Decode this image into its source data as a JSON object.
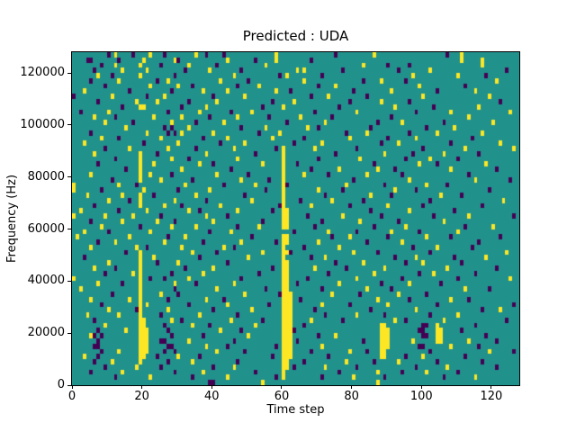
{
  "chart_data": {
    "type": "heatmap",
    "title": "Predicted : UDA",
    "xlabel": "Time step",
    "ylabel": "Frequency (Hz)",
    "x_range": [
      0,
      128
    ],
    "y_range": [
      0,
      128000
    ],
    "x_ticks": [
      0,
      20,
      40,
      60,
      80,
      100,
      120
    ],
    "y_ticks": [
      0,
      20000,
      40000,
      60000,
      80000,
      100000,
      120000
    ],
    "grid_cols": 128,
    "grid_rows": 64,
    "grid_on": false,
    "legend": "none",
    "colors": {
      "figure_bg": "#ffffff",
      "mid_teal": "#21918c",
      "low_purple": "#440154",
      "high_yellow": "#fde725",
      "text": "#000000"
    },
    "value_encoding": {
      "default_cell": "mid_teal",
      "p": "low_purple",
      "y": "high_yellow"
    },
    "rows_order": "top_to_bottom_row0_is_128000Hz",
    "rows": [
      {
        "p": [
          10,
          17,
          26,
          38,
          43,
          75,
          107
        ],
        "y": [
          12,
          22,
          35,
          58,
          86,
          111
        ]
      },
      {
        "p": [
          4,
          5,
          13,
          30,
          52,
          68
        ],
        "y": [
          20,
          29,
          44,
          58,
          111,
          117
        ]
      },
      {
        "p": [
          8,
          25,
          41,
          90,
          96
        ],
        "y": [
          12,
          19,
          33,
          55,
          83,
          117
        ]
      },
      {
        "p": [
          6,
          32,
          48,
          77,
          93,
          124
        ],
        "y": [
          14,
          21,
          39,
          64,
          66,
          102
        ]
      },
      {
        "p": [
          11,
          29,
          59,
          71,
          118
        ],
        "y": [
          7,
          19,
          46,
          61,
          97,
          110
        ]
      },
      {
        "p": [
          5,
          24,
          50,
          83,
          95
        ],
        "y": [
          13,
          27,
          42,
          66,
          88,
          121
        ]
      },
      {
        "p": [
          9,
          34,
          47,
          70,
          112
        ],
        "y": [
          22,
          30,
          53,
          75,
          99
        ]
      },
      {
        "p": [
          16,
          28,
          62,
          80,
          104
        ],
        "y": [
          3,
          37,
          44,
          58,
          91,
          115
        ]
      },
      {
        "p": [
          0,
          21,
          40,
          68,
          84
        ],
        "y": [
          11,
          26,
          49,
          73,
          100,
          119
        ]
      },
      {
        "p": [
          7,
          33,
          57,
          79,
          96,
          122
        ],
        "y": [
          18,
          24,
          41,
          63,
          88
        ]
      },
      {
        "p": [
          14,
          31,
          54,
          76,
          103
        ],
        "y": [
          19,
          20,
          38,
          60,
          92,
          116
        ]
      },
      {
        "p": [
          2,
          27,
          45,
          69,
          98
        ],
        "y": [
          10,
          36,
          51,
          81,
          108,
          125
        ]
      },
      {
        "p": [
          12,
          39,
          56,
          74,
          91
        ],
        "y": [
          6,
          23,
          31,
          47,
          65,
          113
        ]
      },
      {
        "p": [
          17,
          35,
          61,
          87,
          106
        ],
        "y": [
          9,
          28,
          43,
          72,
          94,
          120
        ]
      },
      {
        "p": [
          26,
          28,
          48,
          70,
          85,
          101
        ],
        "y": [
          15,
          33,
          55,
          67,
          109
        ]
      },
      {
        "p": [
          5,
          27,
          29,
          53,
          78,
          96
        ],
        "y": [
          21,
          31,
          40,
          59,
          84,
          104,
          117
        ]
      },
      {
        "p": [
          13,
          37,
          66,
          90,
          114
        ],
        "y": [
          8,
          25,
          44,
          57,
          79,
          98
        ]
      },
      {
        "p": [
          20,
          42,
          63,
          88,
          108
        ],
        "y": [
          3,
          30,
          49,
          71,
          93,
          122
        ]
      },
      {
        "p": [
          9,
          35,
          58,
          81,
          100
        ],
        "y": [
          16,
          27,
          46,
          60,
          69,
          112,
          126
        ]
      },
      {
        "p": [
          24,
          52,
          75,
          97,
          116
        ],
        "y": [
          6,
          19,
          38,
          60,
          89,
          106
        ]
      },
      {
        "p": [
          12,
          33,
          70,
          95,
          110
        ],
        "y": [
          19,
          28,
          47,
          60,
          82,
          102
        ]
      },
      {
        "p": [
          7,
          40,
          64,
          86,
          104
        ],
        "y": [
          19,
          23,
          36,
          54,
          60,
          99,
          118
        ]
      },
      {
        "p": [
          15,
          45,
          68,
          92,
          121
        ],
        "y": [
          19,
          31,
          60,
          76,
          87,
          108
        ]
      },
      {
        "p": [
          28,
          50,
          73,
          94,
          113
        ],
        "y": [
          5,
          19,
          22,
          41,
          60,
          66,
          84
        ]
      },
      {
        "p": [
          11,
          34,
          56,
          80,
          125
        ],
        "y": [
          19,
          25,
          48,
          60,
          96,
          115
        ]
      },
      {
        "p": [
          18,
          43,
          61,
          89,
          107
        ],
        "y": [
          0,
          13,
          32,
          52,
          60,
          78,
          101
        ]
      },
      {
        "p": [
          8,
          30,
          55,
          77,
          98,
          119
        ],
        "y": [
          0,
          20,
          39,
          60,
          70,
          92
        ]
      },
      {
        "p": [
          23,
          49,
          72,
          91,
          111
        ],
        "y": [
          4,
          14,
          19,
          35,
          60,
          85,
          105
        ]
      },
      {
        "p": [
          16,
          38,
          65,
          83,
          102
        ],
        "y": [
          10,
          19,
          29,
          51,
          60,
          74,
          123
        ]
      },
      {
        "p": [
          6,
          31,
          59,
          79,
          100,
          117
        ],
        "y": [
          19,
          26,
          42,
          60,
          68,
          90
        ]
      },
      {
        "p": [
          13,
          36,
          57,
          85,
          109
        ],
        "y": [
          2,
          21,
          33,
          47,
          60,
          61,
          96
        ]
      },
      {
        "p": [
          25,
          44,
          67,
          88,
          103,
          126
        ],
        "y": [
          0,
          9,
          17,
          38,
          60,
          61,
          77,
          113
        ]
      },
      {
        "p": [
          5,
          29,
          54,
          71,
          93
        ],
        "y": [
          14,
          24,
          40,
          60,
          61,
          82,
          106
        ]
      },
      {
        "p": [
          19,
          47,
          69,
          86,
          112
        ],
        "y": [
          8,
          28,
          35,
          53,
          60,
          61,
          95,
          120
        ]
      },
      {
        "p": [
          10,
          39,
          63,
          81,
          99
        ],
        "y": [
          3,
          22,
          45,
          73,
          91,
          110
        ]
      },
      {
        "p": [
          27,
          51,
          74,
          90,
          108,
          122
        ],
        "y": [
          1,
          16,
          32,
          60,
          61,
          79,
          101
        ]
      },
      {
        "p": [
          7,
          37,
          58,
          84,
          116
        ],
        "y": [
          12,
          26,
          48,
          60,
          61,
          70,
          94
        ]
      },
      {
        "p": [
          21,
          46,
          66,
          97,
          114
        ],
        "y": [
          5,
          18,
          31,
          43,
          60,
          76,
          104
        ]
      },
      {
        "p": [
          15,
          41,
          62,
          87,
          102
        ],
        "y": [
          19,
          34,
          54,
          60,
          61,
          80,
          124
        ]
      },
      {
        "p": [
          3,
          36,
          68,
          92,
          109
        ],
        "y": [
          19,
          23,
          50,
          60,
          72,
          98,
          118
        ]
      },
      {
        "p": [
          24,
          44,
          75,
          95,
          111
        ],
        "y": [
          10,
          19,
          30,
          60,
          61,
          83,
          100
        ]
      },
      {
        "p": [
          12,
          32,
          57,
          78,
          121
        ],
        "y": [
          6,
          19,
          40,
          60,
          61,
          69,
          89,
          107
        ]
      },
      {
        "p": [
          9,
          28,
          53,
          73,
          99,
          115
        ],
        "y": [
          17,
          19,
          37,
          60,
          61,
          86,
          103
        ]
      },
      {
        "p": [
          22,
          26,
          48,
          67,
          94,
          110
        ],
        "y": [
          0,
          19,
          33,
          60,
          61,
          81,
          125
        ]
      },
      {
        "p": [
          14,
          35,
          64,
          88,
          105
        ],
        "y": [
          7,
          19,
          29,
          46,
          60,
          61,
          76,
          96
        ]
      },
      {
        "p": [
          29,
          55,
          71,
          91,
          119
        ],
        "y": [
          2,
          19,
          41,
          60,
          61,
          84,
          112
        ]
      },
      {
        "p": [
          11,
          30,
          59,
          82,
          101
        ],
        "y": [
          19,
          25,
          49,
          60,
          61,
          62,
          74,
          93
        ]
      },
      {
        "p": [
          27,
          43,
          65,
          96,
          113
        ],
        "y": [
          5,
          16,
          19,
          38,
          60,
          61,
          62,
          87,
          108
        ]
      },
      {
        "p": [
          8,
          33,
          56,
          79,
          104,
          126
        ],
        "y": [
          19,
          21,
          44,
          60,
          61,
          62,
          71,
          90
        ]
      },
      {
        "p": [
          18,
          40,
          69,
          85,
          117
        ],
        "y": [
          10,
          19,
          27,
          51,
          60,
          61,
          62,
          98,
          122
        ]
      },
      {
        "p": [
          25,
          47,
          72,
          89,
          102
        ],
        "y": [
          4,
          13,
          19,
          36,
          60,
          61,
          62,
          81,
          110
        ]
      },
      {
        "p": [
          6,
          31,
          54,
          77,
          95,
          124
        ],
        "y": [
          19,
          20,
          28,
          45,
          60,
          61,
          62,
          68,
          92,
          106
        ]
      },
      {
        "p": [
          26,
          39,
          66,
          100,
          101,
          115
        ],
        "y": [
          9,
          19,
          20,
          34,
          52,
          60,
          61,
          62,
          88,
          89,
          104
        ]
      },
      {
        "p": [
          7,
          27,
          48,
          63,
          99,
          100,
          111
        ],
        "y": [
          15,
          19,
          20,
          21,
          42,
          60,
          61,
          62,
          88,
          89,
          90,
          104,
          105
        ]
      },
      {
        "p": [
          6,
          8,
          28,
          37,
          70,
          100,
          101,
          118
        ],
        "y": [
          5,
          19,
          20,
          21,
          50,
          60,
          61,
          62,
          75,
          88,
          89,
          90,
          104,
          105
        ]
      },
      {
        "p": [
          7,
          25,
          26,
          46,
          64,
          83,
          121
        ],
        "y": [
          19,
          20,
          21,
          33,
          60,
          61,
          62,
          88,
          89,
          90,
          97,
          104,
          105,
          113
        ]
      },
      {
        "p": [
          6,
          7,
          27,
          28,
          44,
          58,
          99,
          100,
          116
        ],
        "y": [
          19,
          20,
          21,
          38,
          60,
          61,
          62,
          71,
          88,
          89,
          90,
          108
        ]
      },
      {
        "p": [
          8,
          26,
          29,
          49,
          68,
          84,
          102,
          126
        ],
        "y": [
          13,
          19,
          20,
          21,
          41,
          60,
          61,
          62,
          79,
          88,
          89,
          119
        ]
      },
      {
        "p": [
          7,
          24,
          36,
          57,
          73,
          95,
          112
        ],
        "y": [
          3,
          19,
          20,
          30,
          60,
          61,
          62,
          88,
          89,
          100
        ]
      },
      {
        "p": [
          6,
          27,
          47,
          66,
          86,
          104,
          117
        ],
        "y": [
          11,
          19,
          34,
          60,
          61,
          78,
          93
        ]
      },
      {
        "p": [
          9,
          25,
          40,
          63,
          81,
          98,
          121
        ],
        "y": [
          18,
          46,
          60,
          61,
          72,
          107
        ]
      },
      {
        "p": [
          5,
          29,
          52,
          76,
          94,
          110
        ],
        "y": [
          14,
          37,
          60,
          87,
          101
        ]
      },
      {
        "p": [
          12,
          34,
          58,
          71,
          89,
          106
        ],
        "y": [
          22,
          44,
          60,
          80,
          115
        ]
      },
      {
        "p": [
          39,
          40
        ],
        "y": [
          54,
          87
        ]
      }
    ]
  }
}
